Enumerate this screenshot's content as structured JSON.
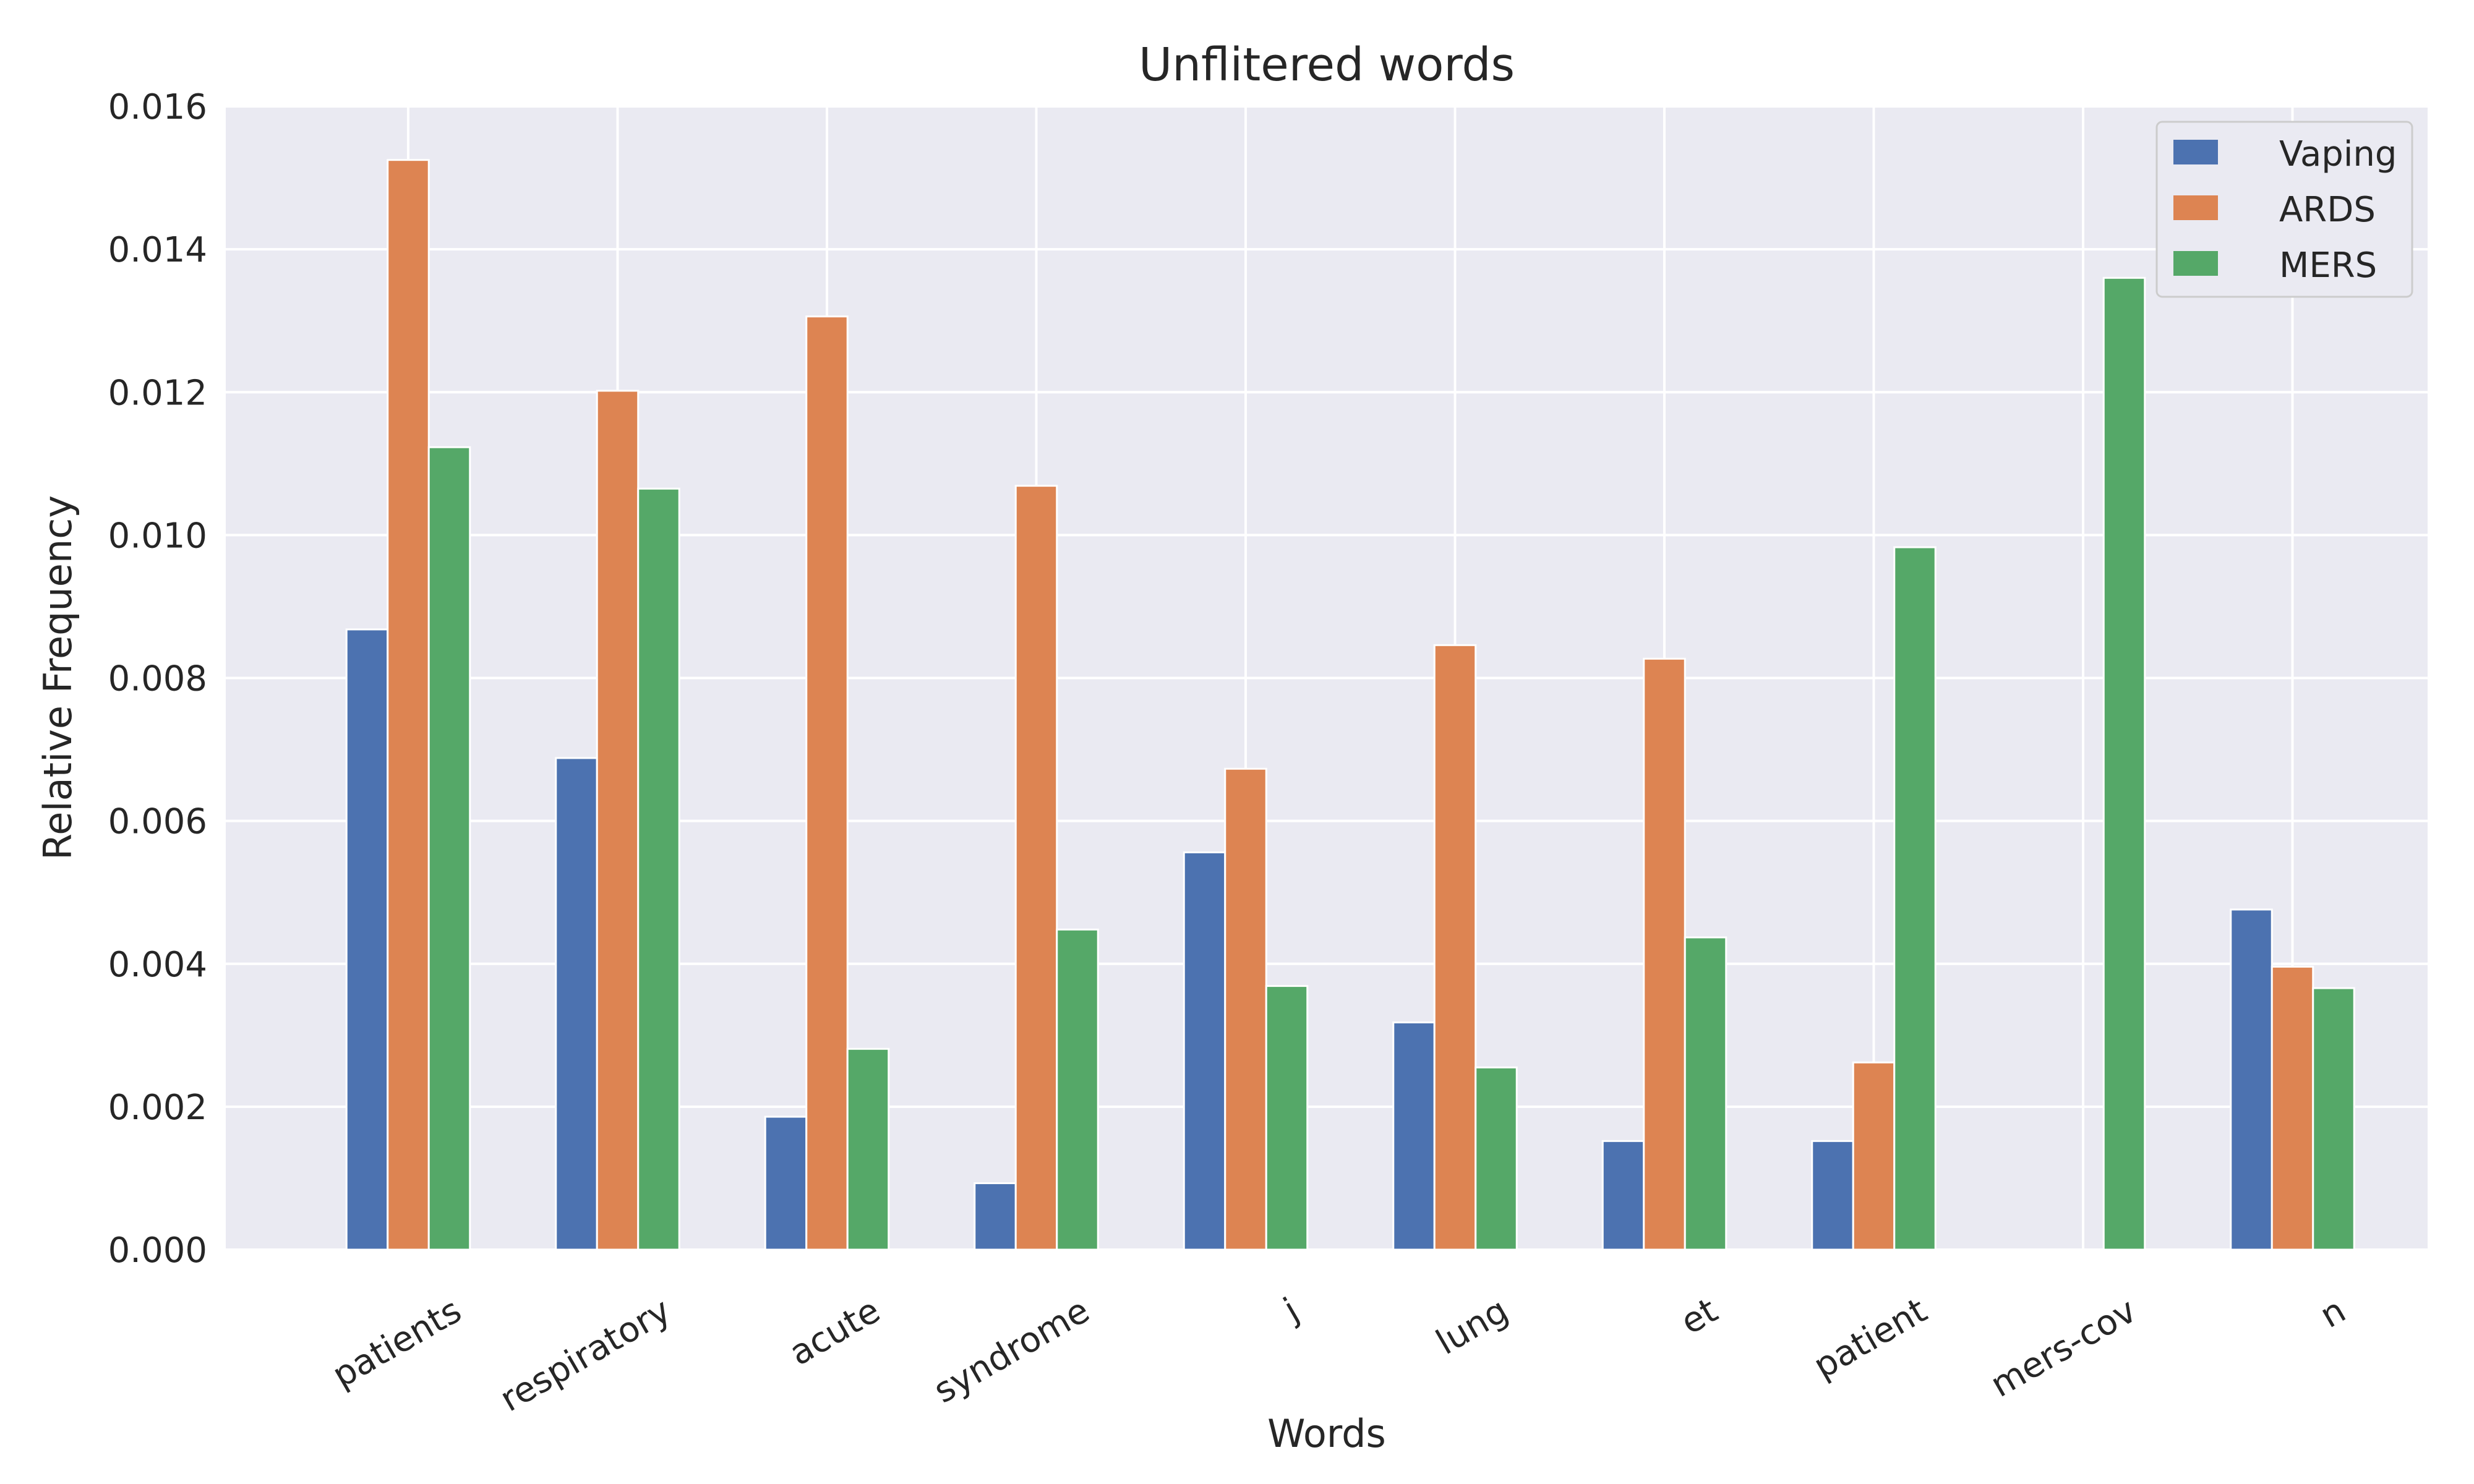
{
  "chart_data": {
    "type": "bar",
    "title": "Unflitered words",
    "xlabel": "Words",
    "ylabel": "Relative Frequency",
    "categories": [
      "patients",
      "respiratory",
      "acute",
      "syndrome",
      "j",
      "lung",
      "et",
      "patient",
      "mers-cov",
      "n"
    ],
    "series": [
      {
        "name": "Vaping",
        "color": "#4C72B0",
        "values": [
          0.00868,
          0.00688,
          0.00186,
          0.00093,
          0.00556,
          0.00318,
          0.00152,
          0.00152,
          0.0,
          0.00476
        ]
      },
      {
        "name": "ARDS",
        "color": "#DD8452",
        "values": [
          0.01525,
          0.01202,
          0.01306,
          0.01069,
          0.00673,
          0.00846,
          0.00827,
          0.00262,
          0.0,
          0.00396
        ]
      },
      {
        "name": "MERS",
        "color": "#55A868",
        "values": [
          0.01123,
          0.01065,
          0.00281,
          0.00448,
          0.00369,
          0.00255,
          0.00437,
          0.00983,
          0.0136,
          0.00366
        ]
      }
    ],
    "ylim": [
      0,
      0.016
    ],
    "yticks": [
      "0.000",
      "0.002",
      "0.004",
      "0.006",
      "0.008",
      "0.010",
      "0.012",
      "0.014",
      "0.016"
    ],
    "grid": true,
    "legend_position": "top-right",
    "style": {
      "background": "#EAEAF2",
      "grid_color": "#FFFFFF",
      "bar_edge": "#FFFFFF"
    }
  }
}
